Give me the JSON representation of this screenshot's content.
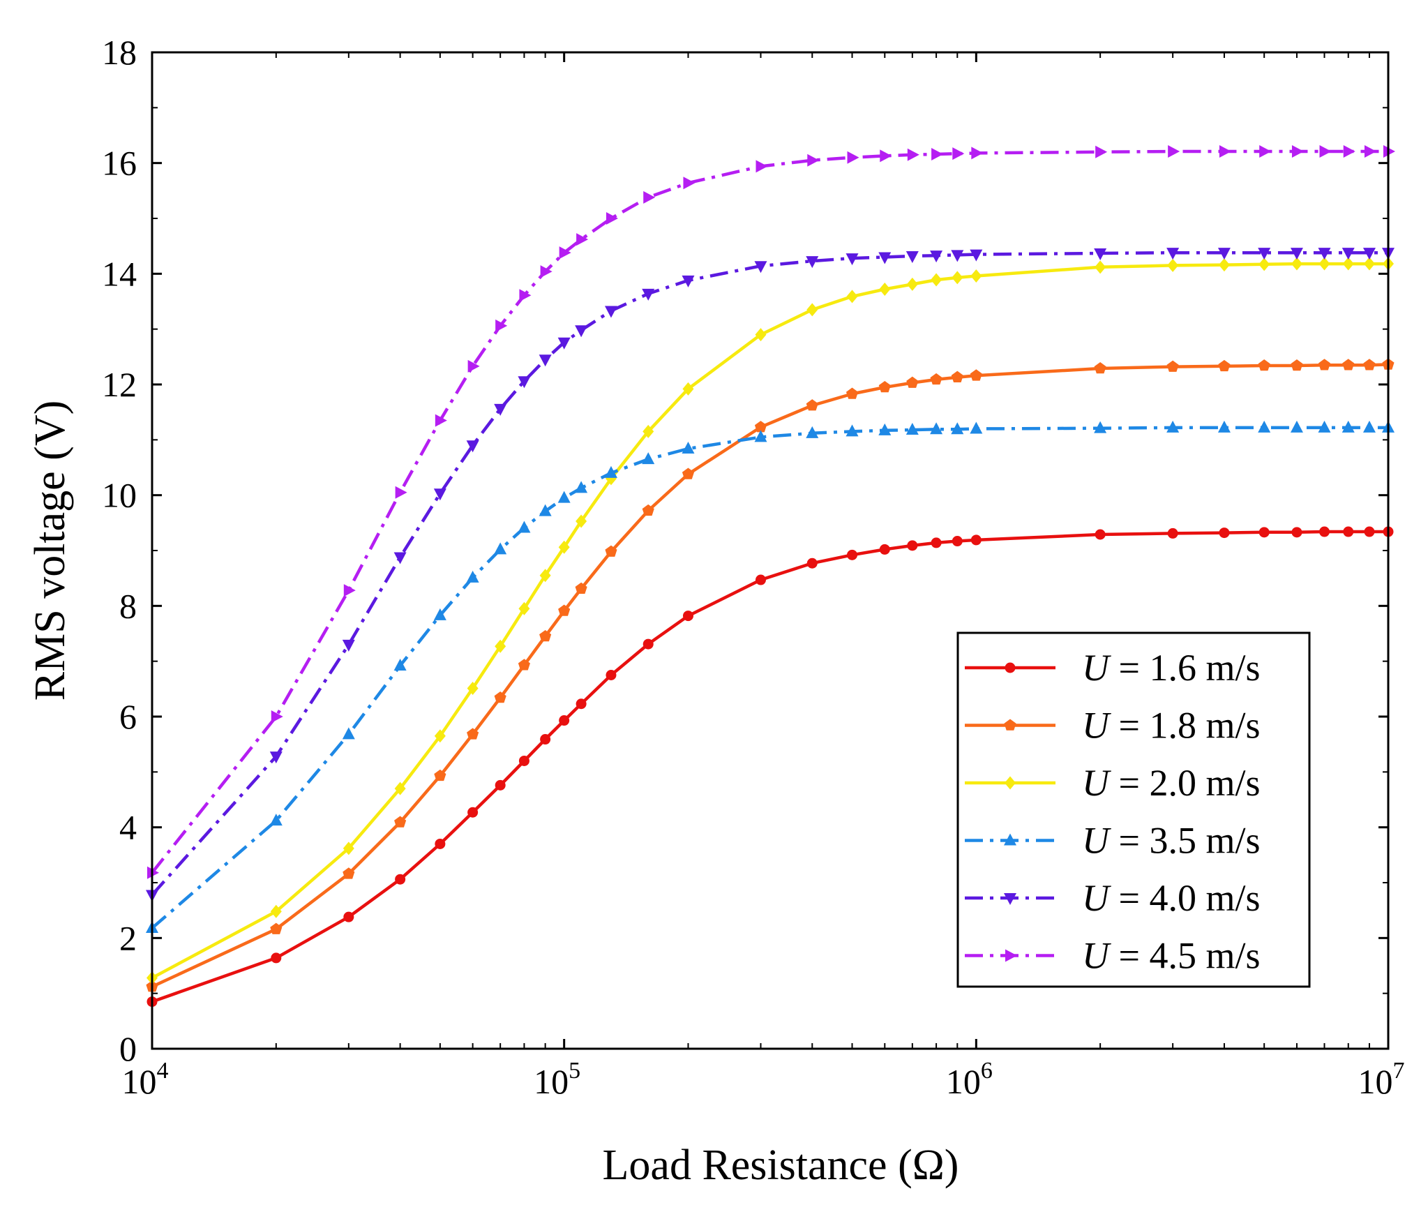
{
  "chart_data": {
    "type": "line",
    "title": "",
    "xlabel": "Load Resistance (Ω)",
    "ylabel": "RMS voltage (V)",
    "xscale": "log",
    "xlim": [
      10000,
      10000000
    ],
    "ylim": [
      0,
      18
    ],
    "grid": false,
    "legend_position": "bottom-right",
    "x_ticks": [
      {
        "base": "10",
        "exp": "4"
      },
      {
        "base": "10",
        "exp": "5"
      },
      {
        "base": "10",
        "exp": "6"
      },
      {
        "base": "10",
        "exp": "7"
      }
    ],
    "y_ticks": [
      "0",
      "2",
      "4",
      "6",
      "8",
      "10",
      "12",
      "14",
      "16",
      "18"
    ],
    "x": [
      10000,
      20000,
      30000,
      40000,
      50000,
      60000,
      70000,
      80000,
      90000,
      100000,
      110000,
      130000,
      160000,
      200000,
      300000,
      400000,
      500000,
      600000,
      700000,
      800000,
      900000,
      1000000,
      2000000,
      3000000,
      4000000,
      5000000,
      6000000,
      7000000,
      8000000,
      9000000,
      10000000
    ],
    "series": [
      {
        "name": "U = 1.6 m/s",
        "italic_prefix": "U",
        "label_rest": " = 1.6 m/s",
        "color": "#e8100f",
        "dash": "solid",
        "marker": "circle",
        "values": [
          0.85,
          1.64,
          2.38,
          3.06,
          3.7,
          4.27,
          4.76,
          5.2,
          5.59,
          5.93,
          6.23,
          6.75,
          7.31,
          7.82,
          8.47,
          8.77,
          8.92,
          9.02,
          9.09,
          9.14,
          9.17,
          9.19,
          9.29,
          9.31,
          9.32,
          9.33,
          9.33,
          9.34,
          9.34,
          9.34,
          9.34
        ]
      },
      {
        "name": "U = 1.8 m/s",
        "italic_prefix": "U",
        "label_rest": " = 1.8 m/s",
        "color": "#f96a1a",
        "dash": "solid",
        "marker": "pentagon",
        "values": [
          1.12,
          2.16,
          3.16,
          4.09,
          4.93,
          5.68,
          6.34,
          6.93,
          7.45,
          7.91,
          8.31,
          8.98,
          9.72,
          10.38,
          11.23,
          11.62,
          11.83,
          11.95,
          12.03,
          12.09,
          12.13,
          12.16,
          12.29,
          12.32,
          12.33,
          12.34,
          12.34,
          12.35,
          12.35,
          12.35,
          12.36
        ]
      },
      {
        "name": "U = 2.0 m/s",
        "italic_prefix": "U",
        "label_rest": " = 2.0 m/s",
        "color": "#f7ea0f",
        "dash": "solid",
        "marker": "diamond",
        "values": [
          1.28,
          2.48,
          3.62,
          4.7,
          5.65,
          6.51,
          7.27,
          7.95,
          8.55,
          9.06,
          9.53,
          10.3,
          11.15,
          11.92,
          12.9,
          13.35,
          13.59,
          13.72,
          13.81,
          13.89,
          13.93,
          13.96,
          14.12,
          14.15,
          14.16,
          14.17,
          14.18,
          14.18,
          14.18,
          14.18,
          14.18
        ]
      },
      {
        "name": "U = 3.5 m/s",
        "italic_prefix": "U",
        "label_rest": " = 3.5 m/s",
        "color": "#1e88e5",
        "dash": "dashdot",
        "marker": "triangle-up",
        "values": [
          2.18,
          4.12,
          5.68,
          6.92,
          7.83,
          8.51,
          9.02,
          9.41,
          9.71,
          9.95,
          10.13,
          10.4,
          10.65,
          10.84,
          11.05,
          11.12,
          11.15,
          11.17,
          11.18,
          11.19,
          11.19,
          11.2,
          11.21,
          11.22,
          11.22,
          11.22,
          11.22,
          11.22,
          11.22,
          11.22,
          11.22
        ]
      },
      {
        "name": "U = 4.0 m/s",
        "italic_prefix": "U",
        "label_rest": " = 4.0 m/s",
        "color": "#5b19e0",
        "dash": "dashdot",
        "marker": "triangle-down",
        "values": [
          2.78,
          5.28,
          7.3,
          8.88,
          10.03,
          10.9,
          11.56,
          12.06,
          12.45,
          12.76,
          12.98,
          13.33,
          13.64,
          13.88,
          14.14,
          14.23,
          14.28,
          14.3,
          14.32,
          14.33,
          14.34,
          14.35,
          14.37,
          14.38,
          14.38,
          14.38,
          14.38,
          14.38,
          14.38,
          14.38,
          14.38
        ]
      },
      {
        "name": "U = 4.5 m/s",
        "italic_prefix": "U",
        "label_rest": " = 4.5 m/s",
        "color": "#b51ef2",
        "dash": "dashdot",
        "marker": "triangle-right",
        "values": [
          3.18,
          6.0,
          8.28,
          10.05,
          11.35,
          12.33,
          13.06,
          13.61,
          14.04,
          14.38,
          14.62,
          15.0,
          15.38,
          15.64,
          15.94,
          16.05,
          16.1,
          16.13,
          16.15,
          16.16,
          16.17,
          16.18,
          16.2,
          16.21,
          16.21,
          16.21,
          16.21,
          16.21,
          16.21,
          16.21,
          16.21
        ]
      }
    ]
  }
}
